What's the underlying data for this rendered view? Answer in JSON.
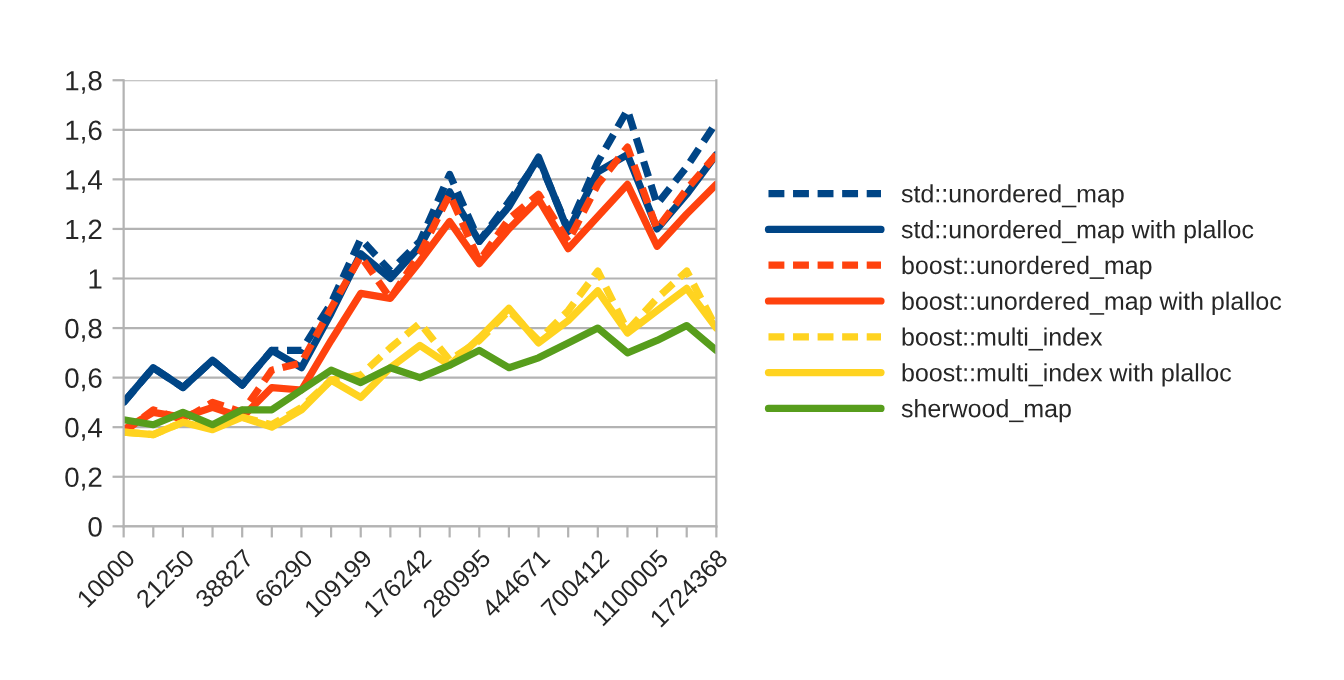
{
  "chart_data": {
    "type": "line",
    "categories": [
      "10000",
      null,
      "21250",
      null,
      "38827",
      null,
      "66290",
      null,
      "109199",
      null,
      "176242",
      null,
      "280995",
      null,
      "444671",
      null,
      "700412",
      null,
      "1100005",
      null,
      "1724368"
    ],
    "series": [
      {
        "name": "std::unordered_map",
        "color": "#004586",
        "line_style": "dashed",
        "values": [
          0.5,
          0.64,
          0.56,
          0.67,
          0.57,
          0.71,
          0.71,
          0.9,
          1.16,
          1.03,
          1.15,
          1.42,
          1.15,
          1.31,
          1.48,
          1.2,
          1.47,
          1.68,
          1.3,
          1.45,
          1.63
        ]
      },
      {
        "name": "std::unordered_map with plalloc",
        "color": "#004586",
        "line_style": "solid",
        "values": [
          0.5,
          0.64,
          0.56,
          0.67,
          0.57,
          0.71,
          0.64,
          0.86,
          1.1,
          1.0,
          1.13,
          1.35,
          1.15,
          1.29,
          1.49,
          1.19,
          1.43,
          1.5,
          1.2,
          1.34,
          1.5
        ]
      },
      {
        "name": "boost::unordered_map",
        "color": "#ff420e",
        "line_style": "dashed",
        "values": [
          0.38,
          0.47,
          0.43,
          0.5,
          0.46,
          0.63,
          0.66,
          0.88,
          1.09,
          0.92,
          1.1,
          1.34,
          1.07,
          1.24,
          1.34,
          1.15,
          1.38,
          1.53,
          1.2,
          1.36,
          1.5
        ]
      },
      {
        "name": "boost::unordered_map with plalloc",
        "color": "#ff420e",
        "line_style": "solid",
        "values": [
          0.39,
          0.46,
          0.44,
          0.48,
          0.44,
          0.56,
          0.55,
          0.75,
          0.94,
          0.92,
          1.07,
          1.23,
          1.06,
          1.2,
          1.32,
          1.12,
          1.25,
          1.38,
          1.13,
          1.26,
          1.38
        ]
      },
      {
        "name": "boost::multi_index",
        "color": "#ffd320",
        "line_style": "dashed",
        "values": [
          0.38,
          0.37,
          0.42,
          0.4,
          0.44,
          0.41,
          0.48,
          0.59,
          0.61,
          0.72,
          0.82,
          0.67,
          0.75,
          0.87,
          0.75,
          0.87,
          1.03,
          0.79,
          0.92,
          1.03,
          0.8
        ]
      },
      {
        "name": "boost::multi_index with plalloc",
        "color": "#ffd320",
        "line_style": "solid",
        "values": [
          0.38,
          0.37,
          0.42,
          0.39,
          0.44,
          0.4,
          0.47,
          0.59,
          0.52,
          0.64,
          0.73,
          0.65,
          0.76,
          0.88,
          0.74,
          0.83,
          0.95,
          0.78,
          0.87,
          0.96,
          0.8
        ]
      },
      {
        "name": "sherwood_map",
        "color": "#579d1c",
        "line_style": "solid",
        "values": [
          0.43,
          0.41,
          0.46,
          0.41,
          0.47,
          0.47,
          0.55,
          0.63,
          0.58,
          0.64,
          0.6,
          0.65,
          0.71,
          0.64,
          0.68,
          0.74,
          0.8,
          0.7,
          0.75,
          0.81,
          0.71
        ]
      }
    ],
    "ylim": [
      0,
      1.8
    ],
    "yticks": [
      0,
      {
        "value": 0.2,
        "label": "0,2"
      },
      {
        "value": 0.4,
        "label": "0,4"
      },
      {
        "value": 0.6,
        "label": "0,6"
      },
      {
        "value": 0.8,
        "label": "0,8"
      },
      1,
      {
        "value": 1.2,
        "label": "1,2"
      },
      {
        "value": 1.4,
        "label": "1,4"
      },
      {
        "value": 1.6,
        "label": "1,6"
      },
      {
        "value": 1.8,
        "label": "1,8"
      }
    ],
    "grid": "y",
    "legend": "right",
    "marker": "none"
  }
}
